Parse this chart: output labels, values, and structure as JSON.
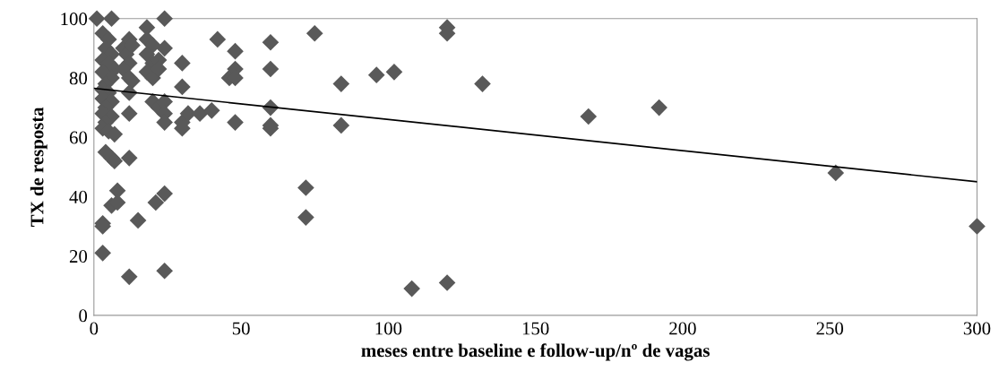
{
  "chart_data": {
    "type": "scatter",
    "xlabel": "meses entre baseline e follow-up/nº de vagas",
    "ylabel": "TX de resposta",
    "xlim": [
      0,
      300
    ],
    "xticks": [
      0,
      50,
      100,
      150,
      200,
      250,
      300
    ],
    "ylim": [
      0,
      100
    ],
    "yticks": [
      0,
      20,
      40,
      60,
      80,
      100
    ],
    "grid": false,
    "series": [
      {
        "marker": "diamond",
        "color": "#595959",
        "x": [
          1,
          6,
          24,
          3,
          5,
          4,
          6,
          3,
          5,
          7,
          3,
          6,
          4,
          3,
          5,
          3,
          6,
          4,
          3,
          6,
          4,
          3,
          5,
          7,
          4,
          6,
          7,
          8,
          6,
          8,
          3,
          3,
          3,
          10,
          11,
          12,
          13,
          12,
          10,
          12,
          13,
          12,
          12,
          12,
          12,
          15,
          18,
          18,
          20,
          18,
          20,
          22,
          18,
          20,
          22,
          20,
          22,
          24,
          24,
          24,
          24,
          21,
          24,
          24,
          30,
          30,
          30,
          30,
          32,
          36,
          40,
          42,
          46,
          48,
          48,
          48,
          48,
          60,
          60,
          60,
          60,
          60,
          72,
          72,
          75,
          84,
          84,
          96,
          102,
          108,
          120,
          120,
          120,
          132,
          168,
          192,
          252,
          300
        ],
        "values": [
          100,
          100,
          100,
          95,
          93,
          90,
          88,
          86,
          85,
          83,
          82,
          80,
          78,
          76,
          75,
          73,
          72,
          70,
          68,
          67,
          65,
          63,
          62,
          61,
          55,
          53,
          52,
          42,
          37,
          38,
          31,
          30,
          21,
          90,
          88,
          93,
          91,
          85,
          83,
          80,
          79,
          75,
          68,
          53,
          13,
          32,
          97,
          93,
          91,
          88,
          85,
          86,
          82,
          80,
          83,
          72,
          70,
          90,
          72,
          68,
          65,
          38,
          41,
          15,
          85,
          77,
          65,
          63,
          68,
          68,
          69,
          93,
          80,
          89,
          83,
          80,
          65,
          92,
          83,
          70,
          64,
          63,
          43,
          33,
          95,
          78,
          64,
          81,
          82,
          9,
          97,
          95,
          11,
          78,
          67,
          70,
          48,
          30
        ]
      },
      {
        "type": "line",
        "color": "#000000",
        "x": [
          0,
          300
        ],
        "values": [
          76.5,
          45
        ]
      }
    ]
  }
}
